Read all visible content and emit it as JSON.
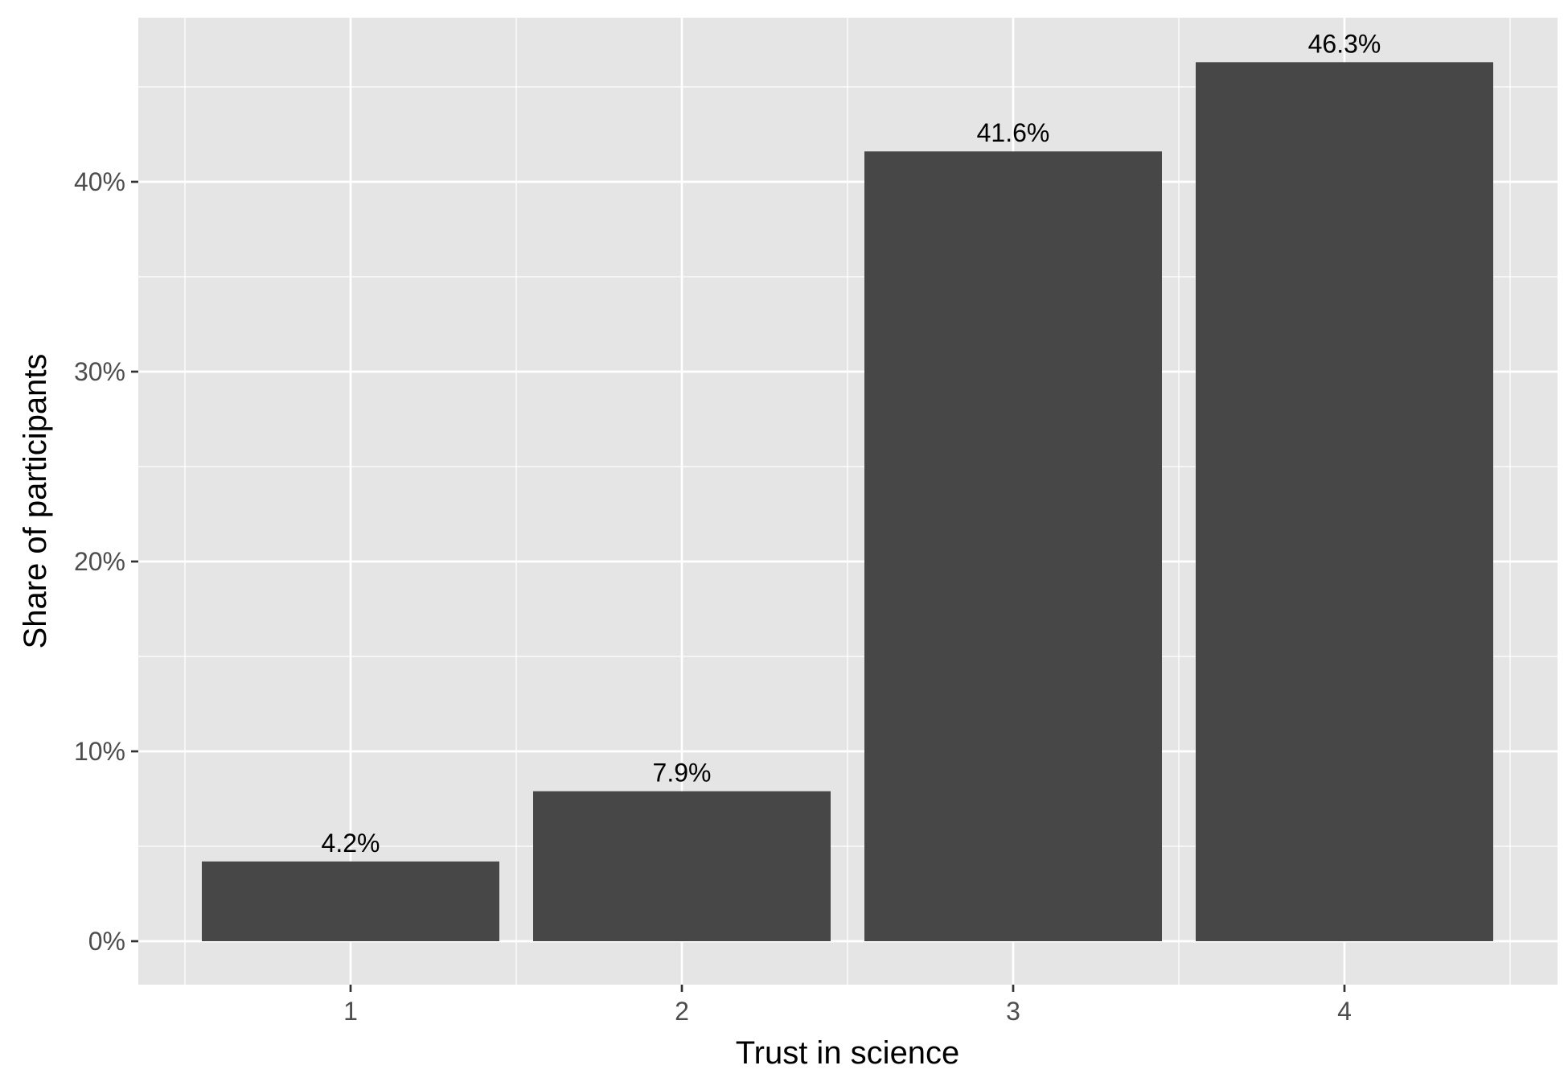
{
  "chart_data": {
    "type": "bar",
    "categories": [
      "1",
      "2",
      "3",
      "4"
    ],
    "values": [
      4.2,
      7.9,
      41.6,
      46.3
    ],
    "data_labels": [
      "4.2%",
      "7.9%",
      "41.6%",
      "46.3%"
    ],
    "xlabel": "Trust in science",
    "ylabel": "Share of participants",
    "ylim": [
      0,
      48
    ],
    "yticks": [
      0,
      10,
      20,
      30,
      40
    ],
    "ytick_labels": [
      "0%",
      "10%",
      "20%",
      "30%",
      "40%"
    ],
    "grid": true,
    "legend": "none",
    "colors": {
      "bar": "#474747",
      "panel_background": "#e5e5e5",
      "grid": "#ffffff",
      "tick_text": "#4d4d4d"
    }
  }
}
